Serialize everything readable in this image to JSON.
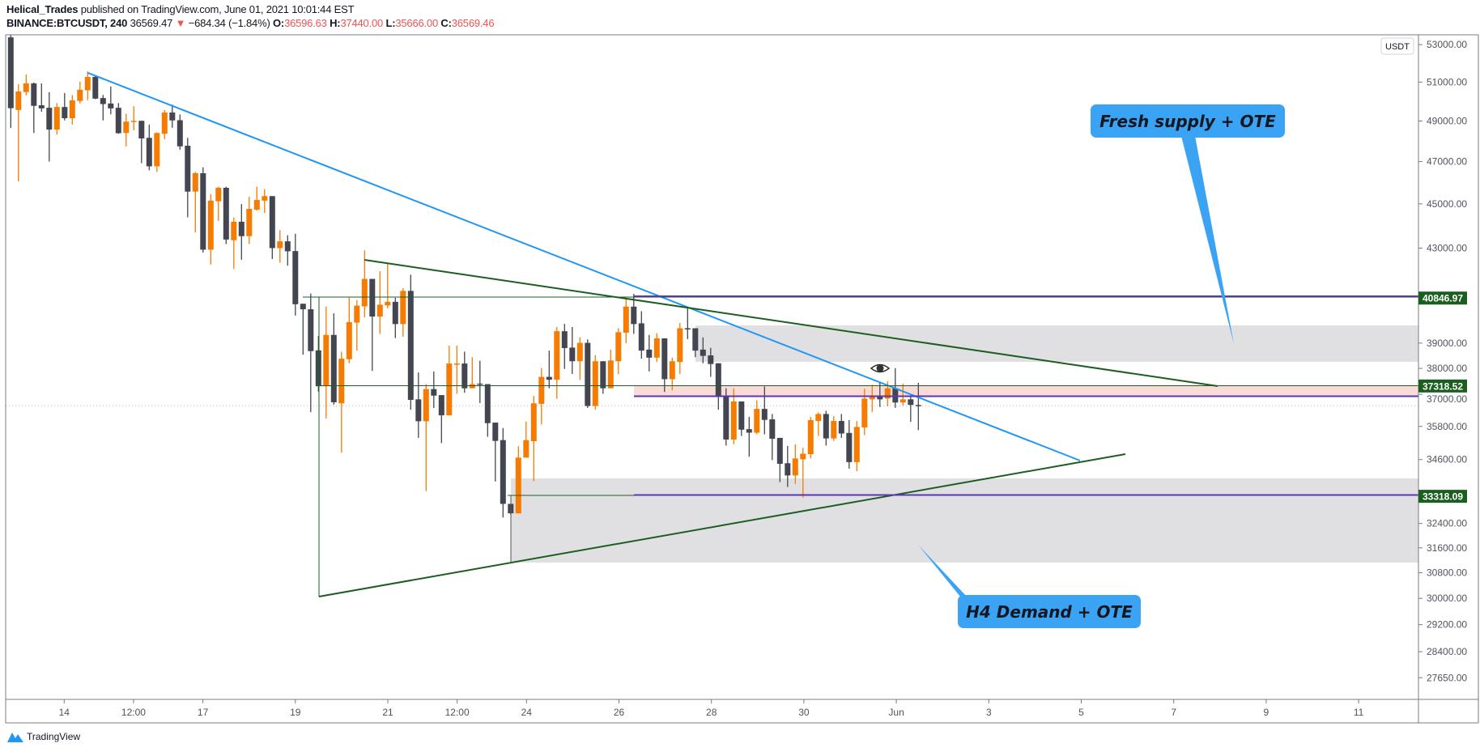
{
  "header": {
    "author": "Helical_Trades",
    "published": "published on TradingView.com, June 01, 2021 10:01:44 EST",
    "symbol": "BINANCE:BTCUSDT, 240",
    "last_price": "36569.47",
    "change": "−684.34 (−1.84%)",
    "o_label": "O:",
    "o_value": "36596.63",
    "h_label": "H:",
    "h_value": "37440.00",
    "l_label": "L:",
    "l_value": "35666.00",
    "c_label": "C:",
    "c_value": "36569.46",
    "direction_icon": "triangle-down-icon"
  },
  "price_axis": {
    "currency_badge": "USDT",
    "scale": "log",
    "ticks": [
      "53000.00",
      "51000.00",
      "49000.00",
      "47000.00",
      "45000.00",
      "43000.00",
      "39000.00",
      "38000.00",
      "37000.00",
      "35800.00",
      "34600.00",
      "32400.00",
      "31600.00",
      "30800.00",
      "30000.00",
      "29200.00",
      "28400.00",
      "27650.00"
    ],
    "level_labels": [
      "40846.97",
      "37318.52",
      "33318.09"
    ]
  },
  "time_axis": {
    "ticks": [
      "14",
      "12:00",
      "17",
      "19",
      "21",
      "12:00",
      "24",
      "26",
      "28",
      "30",
      "Jun",
      "3",
      "5",
      "7",
      "9",
      "11"
    ]
  },
  "colors": {
    "bull": "#f57c00",
    "bear": "#434651",
    "trendline_blue": "#2196f3",
    "trendline_green": "#1b5e20",
    "level_purple": "#5e35b1",
    "zone_grey": "#e0e0e3",
    "zone_pink": "#fadbd8",
    "callout": "#3ba3f3"
  },
  "annotations": {
    "supply_callout": "Fresh supply + OTE",
    "demand_callout": "H4 Demand + OTE",
    "eye_icon": "eye-icon"
  },
  "chart_data": {
    "type": "candlestick",
    "symbol": "BINANCE:BTCUSDT",
    "interval": "240",
    "ylim": [
      27300,
      54000
    ],
    "y_scale": "log",
    "ohlc": [
      [
        53400,
        54000,
        48650,
        49650
      ],
      [
        49560,
        50890,
        46050,
        50510
      ],
      [
        50480,
        51400,
        50310,
        50930
      ],
      [
        50930,
        50980,
        48400,
        49770
      ],
      [
        49800,
        50930,
        49470,
        49640
      ],
      [
        49670,
        50470,
        47000,
        48570
      ],
      [
        48570,
        49910,
        48320,
        49710
      ],
      [
        49710,
        50430,
        49030,
        49140
      ],
      [
        49140,
        50330,
        48820,
        50050
      ],
      [
        50020,
        51020,
        49890,
        50600
      ],
      [
        50570,
        51560,
        50060,
        51270
      ],
      [
        51270,
        51370,
        50110,
        50140
      ],
      [
        50170,
        50330,
        49030,
        49860
      ],
      [
        49890,
        50770,
        49340,
        49640
      ],
      [
        49670,
        49910,
        48360,
        48390
      ],
      [
        48400,
        49370,
        47740,
        48970
      ],
      [
        48960,
        49750,
        48530,
        49010
      ],
      [
        49010,
        49010,
        46920,
        48130
      ],
      [
        48160,
        48820,
        46580,
        46770
      ],
      [
        46770,
        48430,
        46500,
        48400
      ],
      [
        48360,
        49560,
        48090,
        49430
      ],
      [
        49430,
        49830,
        48660,
        49030
      ],
      [
        49040,
        49330,
        47580,
        47740
      ],
      [
        47770,
        48160,
        44380,
        45570
      ],
      [
        45570,
        46500,
        43700,
        46440
      ],
      [
        46440,
        46720,
        42800,
        42930
      ],
      [
        42930,
        45450,
        42280,
        45150
      ],
      [
        45120,
        45800,
        44220,
        45750
      ],
      [
        45750,
        45800,
        43180,
        43380
      ],
      [
        43350,
        44380,
        42090,
        44180
      ],
      [
        44180,
        44990,
        42490,
        43530
      ],
      [
        43530,
        45330,
        43180,
        44770
      ],
      [
        44730,
        45800,
        44690,
        45180
      ],
      [
        45150,
        45690,
        44580,
        45360
      ],
      [
        45360,
        45360,
        42520,
        43000
      ],
      [
        43000,
        43800,
        42360,
        43300
      ],
      [
        43300,
        43570,
        42230,
        42860
      ],
      [
        42870,
        43640,
        40120,
        40590
      ],
      [
        40610,
        40610,
        38540,
        40380
      ],
      [
        40380,
        41040,
        36330,
        38680
      ],
      [
        38710,
        39290,
        37100,
        37310
      ],
      [
        37310,
        40490,
        36090,
        39330
      ],
      [
        39330,
        40210,
        36610,
        36700
      ],
      [
        36660,
        38660,
        34850,
        38380
      ],
      [
        38360,
        40860,
        38200,
        39850
      ],
      [
        39830,
        40760,
        38700,
        40530
      ],
      [
        40500,
        42900,
        40050,
        41660
      ],
      [
        41660,
        41660,
        37900,
        40080
      ],
      [
        40080,
        41990,
        39370,
        40570
      ],
      [
        40540,
        42360,
        40420,
        40690
      ],
      [
        40690,
        40860,
        39200,
        39770
      ],
      [
        39770,
        41270,
        39260,
        41150
      ],
      [
        41150,
        41840,
        36420,
        36790
      ],
      [
        36810,
        37840,
        35380,
        35990
      ],
      [
        35990,
        37390,
        33500,
        37200
      ],
      [
        37200,
        37880,
        36480,
        36950
      ],
      [
        36970,
        36970,
        35190,
        36210
      ],
      [
        36210,
        38900,
        36210,
        38190
      ],
      [
        38170,
        38900,
        37020,
        38190
      ],
      [
        38190,
        38660,
        37060,
        37230
      ],
      [
        37230,
        38440,
        37230,
        37390
      ],
      [
        37410,
        38300,
        36670,
        37370
      ],
      [
        37390,
        37390,
        35420,
        35920
      ],
      [
        35940,
        35940,
        33830,
        35270
      ],
      [
        35300,
        35740,
        32600,
        33060
      ],
      [
        33060,
        33060,
        32700,
        32740
      ],
      [
        32740,
        35080,
        32740,
        34670
      ],
      [
        34670,
        35980,
        34670,
        35300
      ],
      [
        35260,
        36940,
        33840,
        36660
      ],
      [
        36640,
        38010,
        35870,
        37670
      ],
      [
        37670,
        38700,
        37230,
        37560
      ],
      [
        37560,
        39650,
        36830,
        39480
      ],
      [
        39480,
        39780,
        37980,
        38800
      ],
      [
        38820,
        39650,
        37780,
        38280
      ],
      [
        38280,
        39230,
        37550,
        39010
      ],
      [
        39010,
        39150,
        36490,
        36560
      ],
      [
        36560,
        38520,
        36420,
        38280
      ],
      [
        38280,
        38280,
        37020,
        37230
      ],
      [
        37230,
        38740,
        37230,
        38310
      ],
      [
        38280,
        39600,
        37780,
        39440
      ],
      [
        39420,
        40860,
        38990,
        40490
      ],
      [
        40490,
        41020,
        39370,
        39770
      ],
      [
        39800,
        40300,
        38380,
        38700
      ],
      [
        38740,
        39330,
        37880,
        38420
      ],
      [
        38420,
        39400,
        38250,
        39190
      ],
      [
        39190,
        39190,
        37090,
        37580
      ],
      [
        37580,
        38420,
        37160,
        38280
      ],
      [
        38250,
        39820,
        37780,
        39600
      ],
      [
        39600,
        40440,
        39160,
        39580
      ],
      [
        39600,
        39600,
        38440,
        38700
      ],
      [
        38740,
        39230,
        38200,
        38490
      ],
      [
        38510,
        38810,
        37670,
        38170
      ],
      [
        38200,
        38200,
        36420,
        36910
      ],
      [
        36930,
        37230,
        35100,
        35320
      ],
      [
        35320,
        37230,
        35150,
        36730
      ],
      [
        36730,
        36730,
        35450,
        35680
      ],
      [
        35700,
        36150,
        34700,
        35570
      ],
      [
        35570,
        36770,
        35510,
        36450
      ],
      [
        36450,
        37300,
        35510,
        36040
      ],
      [
        36060,
        36260,
        34580,
        35350
      ],
      [
        35380,
        35380,
        33810,
        34450
      ],
      [
        34470,
        35090,
        33640,
        34040
      ],
      [
        34040,
        35150,
        33750,
        34640
      ],
      [
        34610,
        35020,
        33280,
        34810
      ],
      [
        34790,
        36150,
        34640,
        36030
      ],
      [
        36000,
        36320,
        35450,
        36260
      ],
      [
        36260,
        36380,
        35100,
        35360
      ],
      [
        35360,
        36180,
        35270,
        36000
      ],
      [
        36000,
        36260,
        35380,
        35540
      ],
      [
        35560,
        36030,
        34280,
        34510
      ],
      [
        34510,
        36000,
        34190,
        35780
      ],
      [
        35760,
        37210,
        35480,
        36840
      ],
      [
        36810,
        37370,
        36340,
        36930
      ],
      [
        36930,
        37440,
        36520,
        36810
      ],
      [
        36840,
        37500,
        36550,
        37230
      ],
      [
        37230,
        38010,
        36490,
        36690
      ],
      [
        36690,
        37410,
        36580,
        36810
      ],
      [
        36810,
        36910,
        35970,
        36600
      ],
      [
        36596.63,
        37440,
        35666,
        36569.46
      ]
    ]
  }
}
